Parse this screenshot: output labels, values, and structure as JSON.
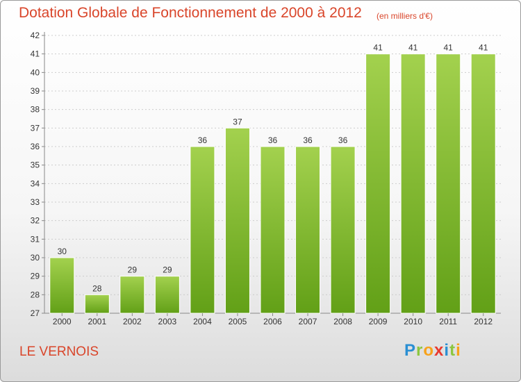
{
  "chart_data": {
    "type": "bar",
    "title": "Dotation Globale de Fonctionnement de 2000 à 2012",
    "subtitle": "(en milliers d'€)",
    "categories": [
      "2000",
      "2001",
      "2002",
      "2003",
      "2004",
      "2005",
      "2006",
      "2007",
      "2008",
      "2009",
      "2010",
      "2011",
      "2012"
    ],
    "values": [
      30,
      28,
      29,
      29,
      36,
      37,
      36,
      36,
      36,
      41,
      41,
      41,
      41
    ],
    "ylim": [
      27,
      42
    ],
    "yticks": [
      27,
      28,
      29,
      30,
      31,
      32,
      33,
      34,
      35,
      36,
      37,
      38,
      39,
      40,
      41,
      42
    ],
    "xlabel": "",
    "ylabel": "",
    "grid": true,
    "bar_color_top": "#a3d14e",
    "bar_color_bottom": "#62a017"
  },
  "footer": {
    "commune": "LE VERNOIS",
    "logo_text": "Proxiti"
  }
}
